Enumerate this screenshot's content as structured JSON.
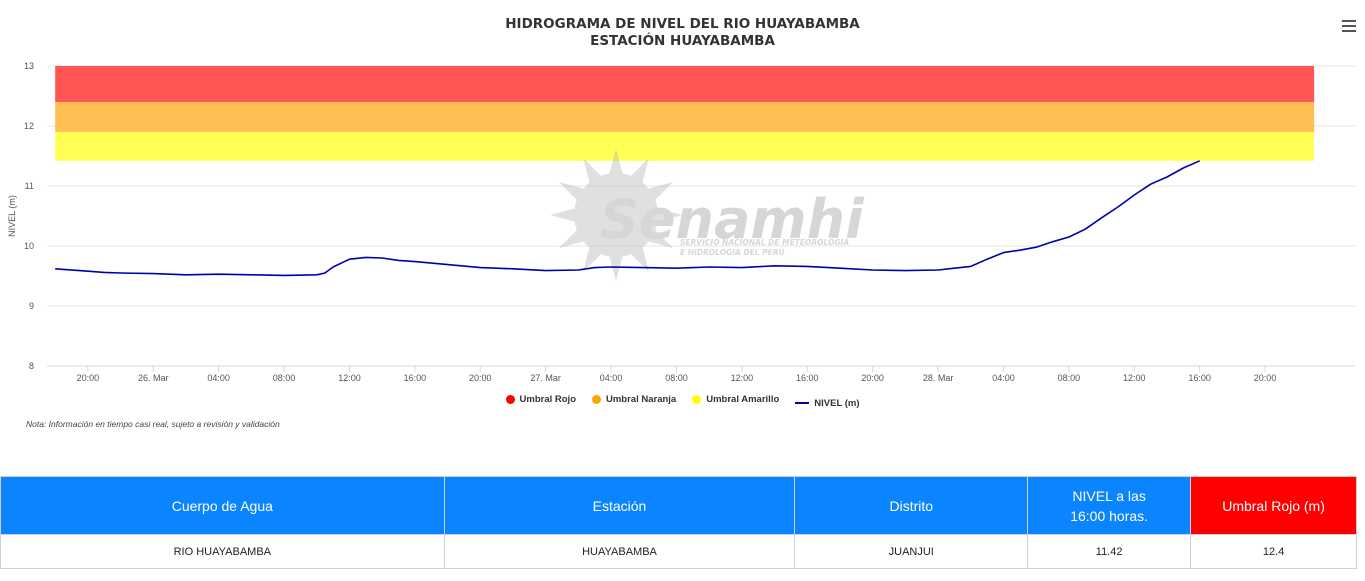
{
  "chart": {
    "title_line1": "HIDROGRAMA DE NIVEL DEL RIO HUAYABAMBA",
    "title_line2": "ESTACIÓN HUAYABAMBA",
    "ylabel": "NIVEL (m)",
    "note": "Nota: Información en tiempo casi real, sujeto a revisión y validación",
    "watermark_main": "Senamhi",
    "watermark_sub1": "SERVICIO NACIONAL DE METEOROLOGÍA",
    "watermark_sub2": "E HIDROLOGÍA DEL PERÚ",
    "menu_icon": "hamburger-menu-icon",
    "legend": [
      {
        "label": "Umbral Rojo",
        "color": "#ff0000",
        "kind": "dot"
      },
      {
        "label": "Umbral Naranja",
        "color": "#ffa500",
        "kind": "dot"
      },
      {
        "label": "Umbral Amarillo",
        "color": "#ffff00",
        "kind": "dot"
      },
      {
        "label": "NIVEL (m)",
        "color": "#0000aa",
        "kind": "line"
      }
    ]
  },
  "chart_data": {
    "type": "line",
    "title": "HIDROGRAMA DE NIVEL DEL RIO HUAYABAMBA",
    "subtitle": "ESTACIÓN HUAYABAMBA",
    "ylabel": "NIVEL (m)",
    "ylim": [
      8,
      13
    ],
    "yticks": [
      8,
      9,
      10,
      11,
      12,
      13
    ],
    "xlim_hours": [
      -6.5,
      73.5
    ],
    "x_ticks": [
      {
        "h": -4,
        "label": "20:00"
      },
      {
        "h": 0,
        "label": "26. Mar"
      },
      {
        "h": 4,
        "label": "04:00"
      },
      {
        "h": 8,
        "label": "08:00"
      },
      {
        "h": 12,
        "label": "12:00"
      },
      {
        "h": 16,
        "label": "16:00"
      },
      {
        "h": 20,
        "label": "20:00"
      },
      {
        "h": 24,
        "label": "27. Mar"
      },
      {
        "h": 28,
        "label": "04:00"
      },
      {
        "h": 32,
        "label": "08:00"
      },
      {
        "h": 36,
        "label": "12:00"
      },
      {
        "h": 40,
        "label": "16:00"
      },
      {
        "h": 44,
        "label": "20:00"
      },
      {
        "h": 48,
        "label": "28. Mar"
      },
      {
        "h": 52,
        "label": "04:00"
      },
      {
        "h": 56,
        "label": "08:00"
      },
      {
        "h": 60,
        "label": "12:00"
      },
      {
        "h": 64,
        "label": "16:00"
      },
      {
        "h": 68,
        "label": "20:00"
      }
    ],
    "threshold_bands": [
      {
        "name": "Umbral Amarillo",
        "from": 11.42,
        "to": 11.9,
        "color": "#ffff55"
      },
      {
        "name": "Umbral Naranja",
        "from": 11.9,
        "to": 12.4,
        "color": "#ffbf55"
      },
      {
        "name": "Umbral Rojo",
        "from": 12.4,
        "to": 13.0,
        "color": "#ff5555"
      }
    ],
    "band_x_range": [
      -6,
      71
    ],
    "series": [
      {
        "name": "NIVEL (m)",
        "color": "#0000aa",
        "x_hours": [
          -6,
          -4,
          -3,
          -2,
          0,
          2,
          4,
          6,
          8,
          10,
          10.5,
          11,
          12,
          13,
          14,
          15,
          16,
          18,
          20,
          22,
          24,
          26,
          27,
          28,
          30,
          32,
          34,
          36,
          38,
          40,
          42,
          44,
          46,
          48,
          49,
          50,
          51,
          52,
          53,
          54,
          55,
          56,
          57,
          58,
          59,
          60,
          61,
          62,
          63,
          64
        ],
        "values": [
          9.62,
          9.58,
          9.56,
          9.55,
          9.54,
          9.52,
          9.53,
          9.52,
          9.51,
          9.52,
          9.55,
          9.65,
          9.78,
          9.81,
          9.8,
          9.76,
          9.74,
          9.69,
          9.64,
          9.62,
          9.59,
          9.6,
          9.64,
          9.65,
          9.64,
          9.63,
          9.65,
          9.64,
          9.67,
          9.66,
          9.63,
          9.6,
          9.59,
          9.6,
          9.63,
          9.66,
          9.78,
          9.89,
          9.93,
          9.98,
          10.07,
          10.15,
          10.28,
          10.47,
          10.65,
          10.85,
          11.03,
          11.15,
          11.3,
          11.42
        ]
      }
    ]
  },
  "table": {
    "headers": [
      "Cuerpo de Agua",
      "Estación",
      "Distrito",
      "NIVEL a las 16:00 horas.",
      "Umbral Rojo (m)"
    ],
    "row": [
      "RIO HUAYABAMBA",
      "HUAYABAMBA",
      "JUANJUI",
      "11.42",
      "12.4"
    ]
  }
}
